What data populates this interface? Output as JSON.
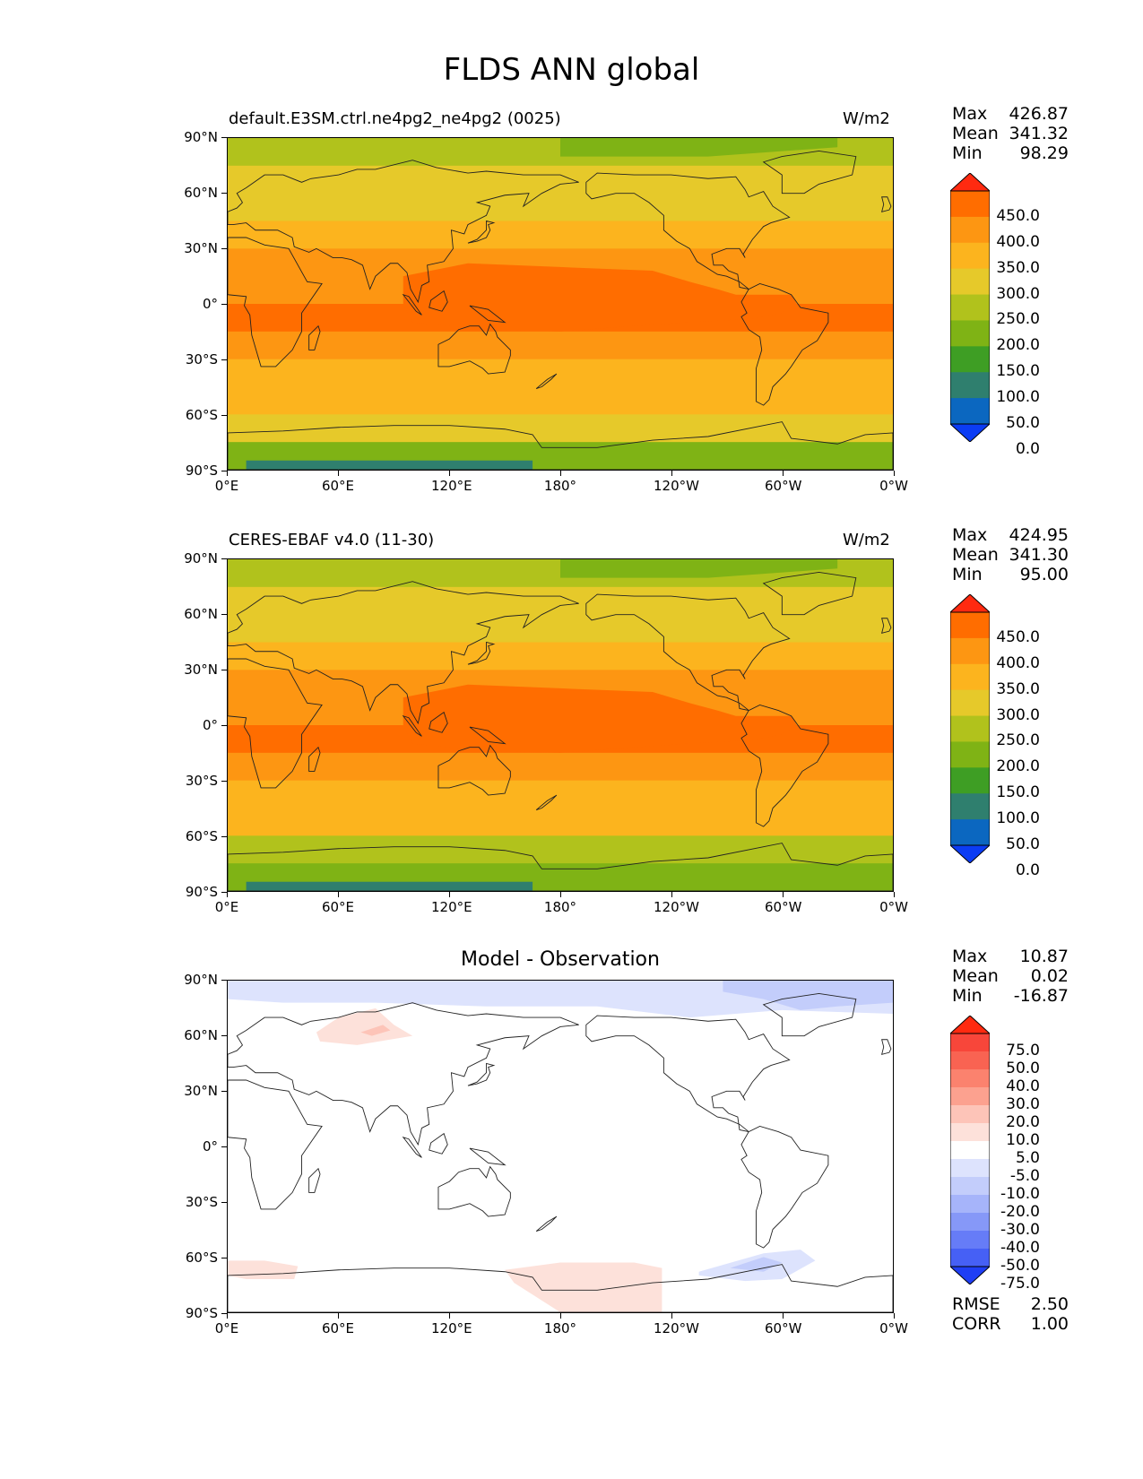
{
  "title": "FLDS ANN global",
  "panels": [
    {
      "id": "test",
      "left_title": "default.E3SM.ctrl.ne4pg2_ne4pg2 (0025)",
      "units": "W/m2",
      "stats": {
        "max_label": "Max",
        "max": "426.87",
        "mean_label": "Mean",
        "mean": "341.32",
        "min_label": "Min",
        "min": "98.29"
      }
    },
    {
      "id": "ref",
      "left_title": "CERES-EBAF v4.0 (11-30)",
      "units": "W/m2",
      "stats": {
        "max_label": "Max",
        "max": "424.95",
        "mean_label": "Mean",
        "mean": "341.30",
        "min_label": "Min",
        "min": "95.00"
      }
    },
    {
      "id": "diff",
      "center_title": "Model - Observation",
      "stats": {
        "max_label": "Max",
        "max": "10.87",
        "mean_label": "Mean",
        "mean": "0.02",
        "min_label": "Min",
        "min": "-16.87"
      }
    }
  ],
  "bottom_stats": {
    "rmse_label": "RMSE",
    "rmse": "2.50",
    "corr_label": "CORR",
    "corr": "1.00"
  },
  "chart_data": [
    {
      "type": "heatmap",
      "title": "default.E3SM.ctrl.ne4pg2_ne4pg2 (0025)",
      "units": "W/m2",
      "x_ticks": [
        "0°E",
        "60°E",
        "120°E",
        "180°",
        "120°W",
        "60°W",
        "0°W"
      ],
      "y_ticks": [
        "90°N",
        "60°N",
        "30°N",
        "0°",
        "30°S",
        "60°S",
        "90°S"
      ],
      "colorbar_levels": [
        "450.0",
        "400.0",
        "350.0",
        "300.0",
        "250.0",
        "200.0",
        "150.0",
        "100.0",
        "50.0",
        "0.0"
      ],
      "colorbar_colors": [
        "#ff2a10",
        "#ff6d00",
        "#fd9612",
        "#fcb41e",
        "#e6c92a",
        "#b1c21c",
        "#7fb315",
        "#3e9e24",
        "#2f7f6e",
        "#0b67c0",
        "#0b3cf4"
      ],
      "zonal_mean_profile": {
        "lat": [
          90,
          75,
          60,
          45,
          30,
          15,
          0,
          -15,
          -30,
          -45,
          -60,
          -75,
          -90
        ],
        "value": [
          235,
          255,
          280,
          310,
          350,
          385,
          405,
          395,
          340,
          320,
          290,
          210,
          130
        ]
      }
    },
    {
      "type": "heatmap",
      "title": "CERES-EBAF v4.0 (11-30)",
      "units": "W/m2",
      "x_ticks": [
        "0°E",
        "60°E",
        "120°E",
        "180°",
        "120°W",
        "60°W",
        "0°W"
      ],
      "y_ticks": [
        "90°N",
        "60°N",
        "30°N",
        "0°",
        "30°S",
        "60°S",
        "90°S"
      ],
      "colorbar_levels": [
        "450.0",
        "400.0",
        "350.0",
        "300.0",
        "250.0",
        "200.0",
        "150.0",
        "100.0",
        "50.0",
        "0.0"
      ],
      "colorbar_colors": [
        "#ff2a10",
        "#ff6d00",
        "#fd9612",
        "#fcb41e",
        "#e6c92a",
        "#b1c21c",
        "#7fb315",
        "#3e9e24",
        "#2f7f6e",
        "#0b67c0",
        "#0b3cf4"
      ],
      "zonal_mean_profile": {
        "lat": [
          90,
          75,
          60,
          45,
          30,
          15,
          0,
          -15,
          -30,
          -45,
          -60,
          -75,
          -90
        ],
        "value": [
          230,
          255,
          280,
          310,
          350,
          385,
          405,
          395,
          340,
          320,
          290,
          205,
          125
        ]
      }
    },
    {
      "type": "heatmap",
      "title": "Model - Observation",
      "x_ticks": [
        "0°E",
        "60°E",
        "120°E",
        "180°",
        "120°W",
        "60°W",
        "0°W"
      ],
      "y_ticks": [
        "90°N",
        "60°N",
        "30°N",
        "0°",
        "30°S",
        "60°S",
        "90°S"
      ],
      "colorbar_levels": [
        "75.0",
        "50.0",
        "40.0",
        "30.0",
        "20.0",
        "10.0",
        "5.0",
        "-5.0",
        "-10.0",
        "-20.0",
        "-30.0",
        "-40.0",
        "-50.0",
        "-75.0"
      ],
      "colorbar_colors": [
        "#ff2a10",
        "#f8463a",
        "#f96352",
        "#fb826e",
        "#fca18f",
        "#fdc4b8",
        "#fde1da",
        "#ffffff",
        "#dde3fd",
        "#c3cdfb",
        "#a6b4fa",
        "#8698f8",
        "#667cf7",
        "#4660f5",
        "#1f3ef4"
      ]
    }
  ],
  "colors": {
    "land_outline": "#222222",
    "ocean_bg": "#ffffff"
  }
}
